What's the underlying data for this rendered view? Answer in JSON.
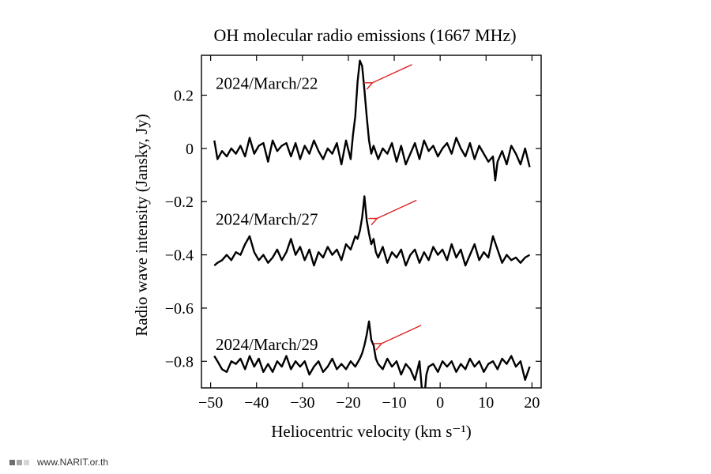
{
  "chart_data": {
    "type": "line",
    "title": "OH molecular radio emissions (1667 MHz)",
    "xlabel": "Heliocentric velocity (km s⁻¹)",
    "ylabel": "Radio wave intensity (Jansky, Jy)",
    "xlim": [
      -52,
      22
    ],
    "ylim": [
      -0.9,
      0.35
    ],
    "xticks": [
      -50,
      -40,
      -30,
      -20,
      -10,
      0,
      10,
      20
    ],
    "xtick_labels": [
      "−50",
      "−40",
      "−30",
      "−20",
      "−10",
      "0",
      "10",
      "20"
    ],
    "yticks": [
      0.2,
      0,
      -0.2,
      -0.4,
      -0.6,
      -0.8
    ],
    "ytick_labels": [
      "0.2",
      "0",
      "−0.2",
      "−0.4",
      "−0.6",
      "−0.8"
    ],
    "grid": false,
    "series": [
      {
        "name": "2024/March/22",
        "peak_x": -17.5,
        "x": [
          -49.2,
          -48.5,
          -47.5,
          -46.5,
          -45.5,
          -44.5,
          -43.5,
          -42.5,
          -41.5,
          -40.5,
          -39.5,
          -38.5,
          -37.5,
          -36.5,
          -35.5,
          -34.5,
          -33.5,
          -32.5,
          -31.5,
          -30.5,
          -29.5,
          -28.5,
          -27.5,
          -26.5,
          -25.5,
          -24.5,
          -23.5,
          -22.5,
          -21.5,
          -20.5,
          -19.5,
          -19,
          -18.5,
          -18,
          -17.5,
          -17,
          -16.5,
          -16,
          -15.5,
          -15,
          -14.5,
          -13.5,
          -12.5,
          -11.5,
          -10.5,
          -9.5,
          -8.5,
          -7.5,
          -6.5,
          -5.5,
          -4.5,
          -3.5,
          -2.5,
          -1.5,
          -0.5,
          0.5,
          1.5,
          2.5,
          3.5,
          4.5,
          5.5,
          6.5,
          7.5,
          8.5,
          9.5,
          10.5,
          11.5,
          12,
          12.5,
          13.5,
          14.5,
          15.5,
          16.5,
          17.5,
          18.5,
          19.5
        ],
        "y": [
          0.03,
          -0.04,
          -0.01,
          -0.03,
          0.0,
          -0.02,
          0.01,
          -0.03,
          0.04,
          -0.02,
          0.01,
          0.02,
          -0.05,
          0.03,
          -0.01,
          0.01,
          0.02,
          -0.03,
          0.02,
          -0.04,
          0.01,
          -0.02,
          0.03,
          -0.01,
          -0.04,
          0.0,
          -0.02,
          0.02,
          -0.06,
          0.03,
          -0.04,
          0.05,
          0.12,
          0.25,
          0.33,
          0.31,
          0.22,
          0.12,
          0.03,
          -0.02,
          0.01,
          -0.04,
          0.0,
          -0.02,
          0.02,
          -0.05,
          0.01,
          -0.06,
          -0.02,
          0.02,
          -0.04,
          0.03,
          -0.01,
          0.01,
          -0.03,
          0.0,
          0.02,
          -0.02,
          0.04,
          0.0,
          -0.03,
          0.02,
          -0.04,
          0.01,
          -0.02,
          -0.05,
          -0.03,
          -0.12,
          -0.05,
          -0.01,
          -0.06,
          0.01,
          -0.02,
          -0.06,
          0.0,
          -0.07
        ]
      },
      {
        "name": "2024/March/27",
        "peak_x": -16.5,
        "x": [
          -49.2,
          -48.5,
          -47.5,
          -46.5,
          -45.5,
          -44.5,
          -43.5,
          -42.5,
          -41.5,
          -40.5,
          -39.5,
          -38.5,
          -37.5,
          -36.5,
          -35.5,
          -34.5,
          -33.5,
          -32.5,
          -31.5,
          -30.5,
          -29.5,
          -28.5,
          -27.5,
          -26.5,
          -25.5,
          -24.5,
          -23.5,
          -22.5,
          -21.5,
          -20.5,
          -19.5,
          -18.5,
          -18,
          -17.5,
          -17,
          -16.5,
          -16,
          -15.5,
          -15,
          -14.5,
          -14,
          -13.5,
          -12.5,
          -11.5,
          -10.5,
          -9.5,
          -8.5,
          -7.5,
          -6.5,
          -5.5,
          -4.5,
          -3.5,
          -2.5,
          -1.5,
          -0.5,
          0.5,
          1.5,
          2.5,
          3.5,
          4.5,
          5.5,
          6.5,
          7.5,
          8.5,
          9.5,
          10.5,
          11.5,
          12.5,
          13.5,
          14.5,
          15.5,
          16.5,
          17.5,
          18.5,
          19.5
        ],
        "y": [
          -0.44,
          -0.43,
          -0.42,
          -0.4,
          -0.42,
          -0.39,
          -0.4,
          -0.36,
          -0.33,
          -0.39,
          -0.42,
          -0.4,
          -0.43,
          -0.41,
          -0.38,
          -0.42,
          -0.39,
          -0.34,
          -0.4,
          -0.37,
          -0.42,
          -0.38,
          -0.44,
          -0.39,
          -0.41,
          -0.37,
          -0.4,
          -0.38,
          -0.42,
          -0.36,
          -0.38,
          -0.33,
          -0.34,
          -0.31,
          -0.26,
          -0.18,
          -0.27,
          -0.32,
          -0.36,
          -0.34,
          -0.39,
          -0.41,
          -0.37,
          -0.43,
          -0.39,
          -0.41,
          -0.38,
          -0.44,
          -0.4,
          -0.38,
          -0.43,
          -0.39,
          -0.42,
          -0.37,
          -0.4,
          -0.38,
          -0.42,
          -0.36,
          -0.41,
          -0.38,
          -0.44,
          -0.4,
          -0.36,
          -0.42,
          -0.39,
          -0.41,
          -0.33,
          -0.38,
          -0.43,
          -0.4,
          -0.42,
          -0.41,
          -0.43,
          -0.41,
          -0.4
        ]
      },
      {
        "name": "2024/March/29",
        "peak_x": -15.5,
        "x": [
          -49.2,
          -48.5,
          -47.5,
          -46.5,
          -45.5,
          -44.5,
          -43.5,
          -42.5,
          -41.5,
          -40.5,
          -39.5,
          -38.5,
          -37.5,
          -36.5,
          -35.5,
          -34.5,
          -33.5,
          -32.5,
          -31.5,
          -30.5,
          -29.5,
          -28.5,
          -27.5,
          -26.5,
          -25.5,
          -24.5,
          -23.5,
          -22.5,
          -21.5,
          -20.5,
          -19.5,
          -18.5,
          -17.5,
          -17,
          -16.5,
          -16,
          -15.5,
          -15,
          -14.5,
          -14,
          -13.5,
          -12.5,
          -11.5,
          -10.5,
          -9.5,
          -8.5,
          -7.5,
          -6.5,
          -5.5,
          -4.5,
          -4,
          -3.5,
          -3,
          -2.5,
          -1.5,
          -0.5,
          0.5,
          1.5,
          2.5,
          3.5,
          4.5,
          5.5,
          6.5,
          7.5,
          8.5,
          9.5,
          10.5,
          11.5,
          12.5,
          13.5,
          14.5,
          15.5,
          16.5,
          17.5,
          18.5,
          19.5
        ],
        "y": [
          -0.78,
          -0.8,
          -0.83,
          -0.84,
          -0.8,
          -0.81,
          -0.79,
          -0.83,
          -0.78,
          -0.82,
          -0.79,
          -0.84,
          -0.81,
          -0.84,
          -0.8,
          -0.82,
          -0.78,
          -0.83,
          -0.8,
          -0.82,
          -0.8,
          -0.85,
          -0.82,
          -0.8,
          -0.84,
          -0.82,
          -0.79,
          -0.83,
          -0.81,
          -0.83,
          -0.8,
          -0.82,
          -0.79,
          -0.77,
          -0.74,
          -0.7,
          -0.65,
          -0.72,
          -0.74,
          -0.79,
          -0.81,
          -0.83,
          -0.79,
          -0.82,
          -0.8,
          -0.85,
          -0.81,
          -0.83,
          -0.87,
          -0.8,
          -0.9,
          -0.95,
          -0.85,
          -0.82,
          -0.81,
          -0.84,
          -0.8,
          -0.82,
          -0.8,
          -0.84,
          -0.81,
          -0.83,
          -0.79,
          -0.82,
          -0.8,
          -0.84,
          -0.81,
          -0.8,
          -0.83,
          -0.79,
          -0.81,
          -0.78,
          -0.82,
          -0.8,
          -0.87,
          -0.82
        ]
      }
    ],
    "annotations": [
      {
        "text": "2024/March/22",
        "series": 0
      },
      {
        "text": "2024/March/27",
        "series": 1
      },
      {
        "text": "2024/March/29",
        "series": 2
      }
    ],
    "arrow_color": "#e02020",
    "line_color": "#000000"
  },
  "footer": {
    "website": "www.NARIT.or.th",
    "squares": [
      "#6e6e6e",
      "#a8a8a8",
      "#d6d6d6"
    ]
  }
}
